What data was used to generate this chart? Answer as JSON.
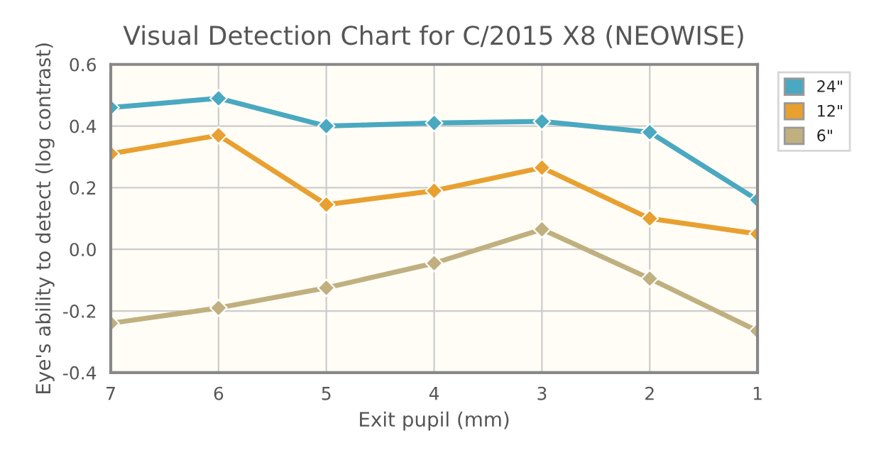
{
  "chart_data": {
    "type": "line",
    "title": "Visual Detection Chart for C/2015 X8 (NEOWISE)",
    "xlabel": "Exit pupil (mm)",
    "ylabel": "Eye's ability to detect (log contrast)",
    "x": [
      7,
      6,
      5,
      4,
      3,
      2,
      1
    ],
    "series": [
      {
        "name": "24\"",
        "color": "#4aa8c0",
        "values": [
          0.46,
          0.49,
          0.4,
          0.41,
          0.415,
          0.38,
          0.16
        ]
      },
      {
        "name": "12\"",
        "color": "#e8a030",
        "values": [
          0.31,
          0.37,
          0.145,
          0.19,
          0.265,
          0.1,
          0.05
        ]
      },
      {
        "name": "6\"",
        "color": "#c0b080",
        "values": [
          -0.24,
          -0.19,
          -0.125,
          -0.045,
          0.065,
          -0.095,
          -0.265
        ]
      }
    ],
    "xlim": [
      7,
      1
    ],
    "xticks": [
      7,
      6,
      5,
      4,
      3,
      2,
      1
    ],
    "ylim": [
      -0.4,
      0.6
    ],
    "yticks": [
      {
        "value": -0.4,
        "label": "-0.4"
      },
      {
        "value": -0.2,
        "label": "-0.2"
      },
      {
        "value": 0.0,
        "label": "0.0"
      },
      {
        "value": 0.2,
        "label": "0.2"
      },
      {
        "value": 0.4,
        "label": "0.4"
      },
      {
        "value": 0.6,
        "label": "0.6"
      }
    ],
    "grid": true,
    "legend": "top right",
    "marker": "diamond",
    "line_style": "solid"
  }
}
